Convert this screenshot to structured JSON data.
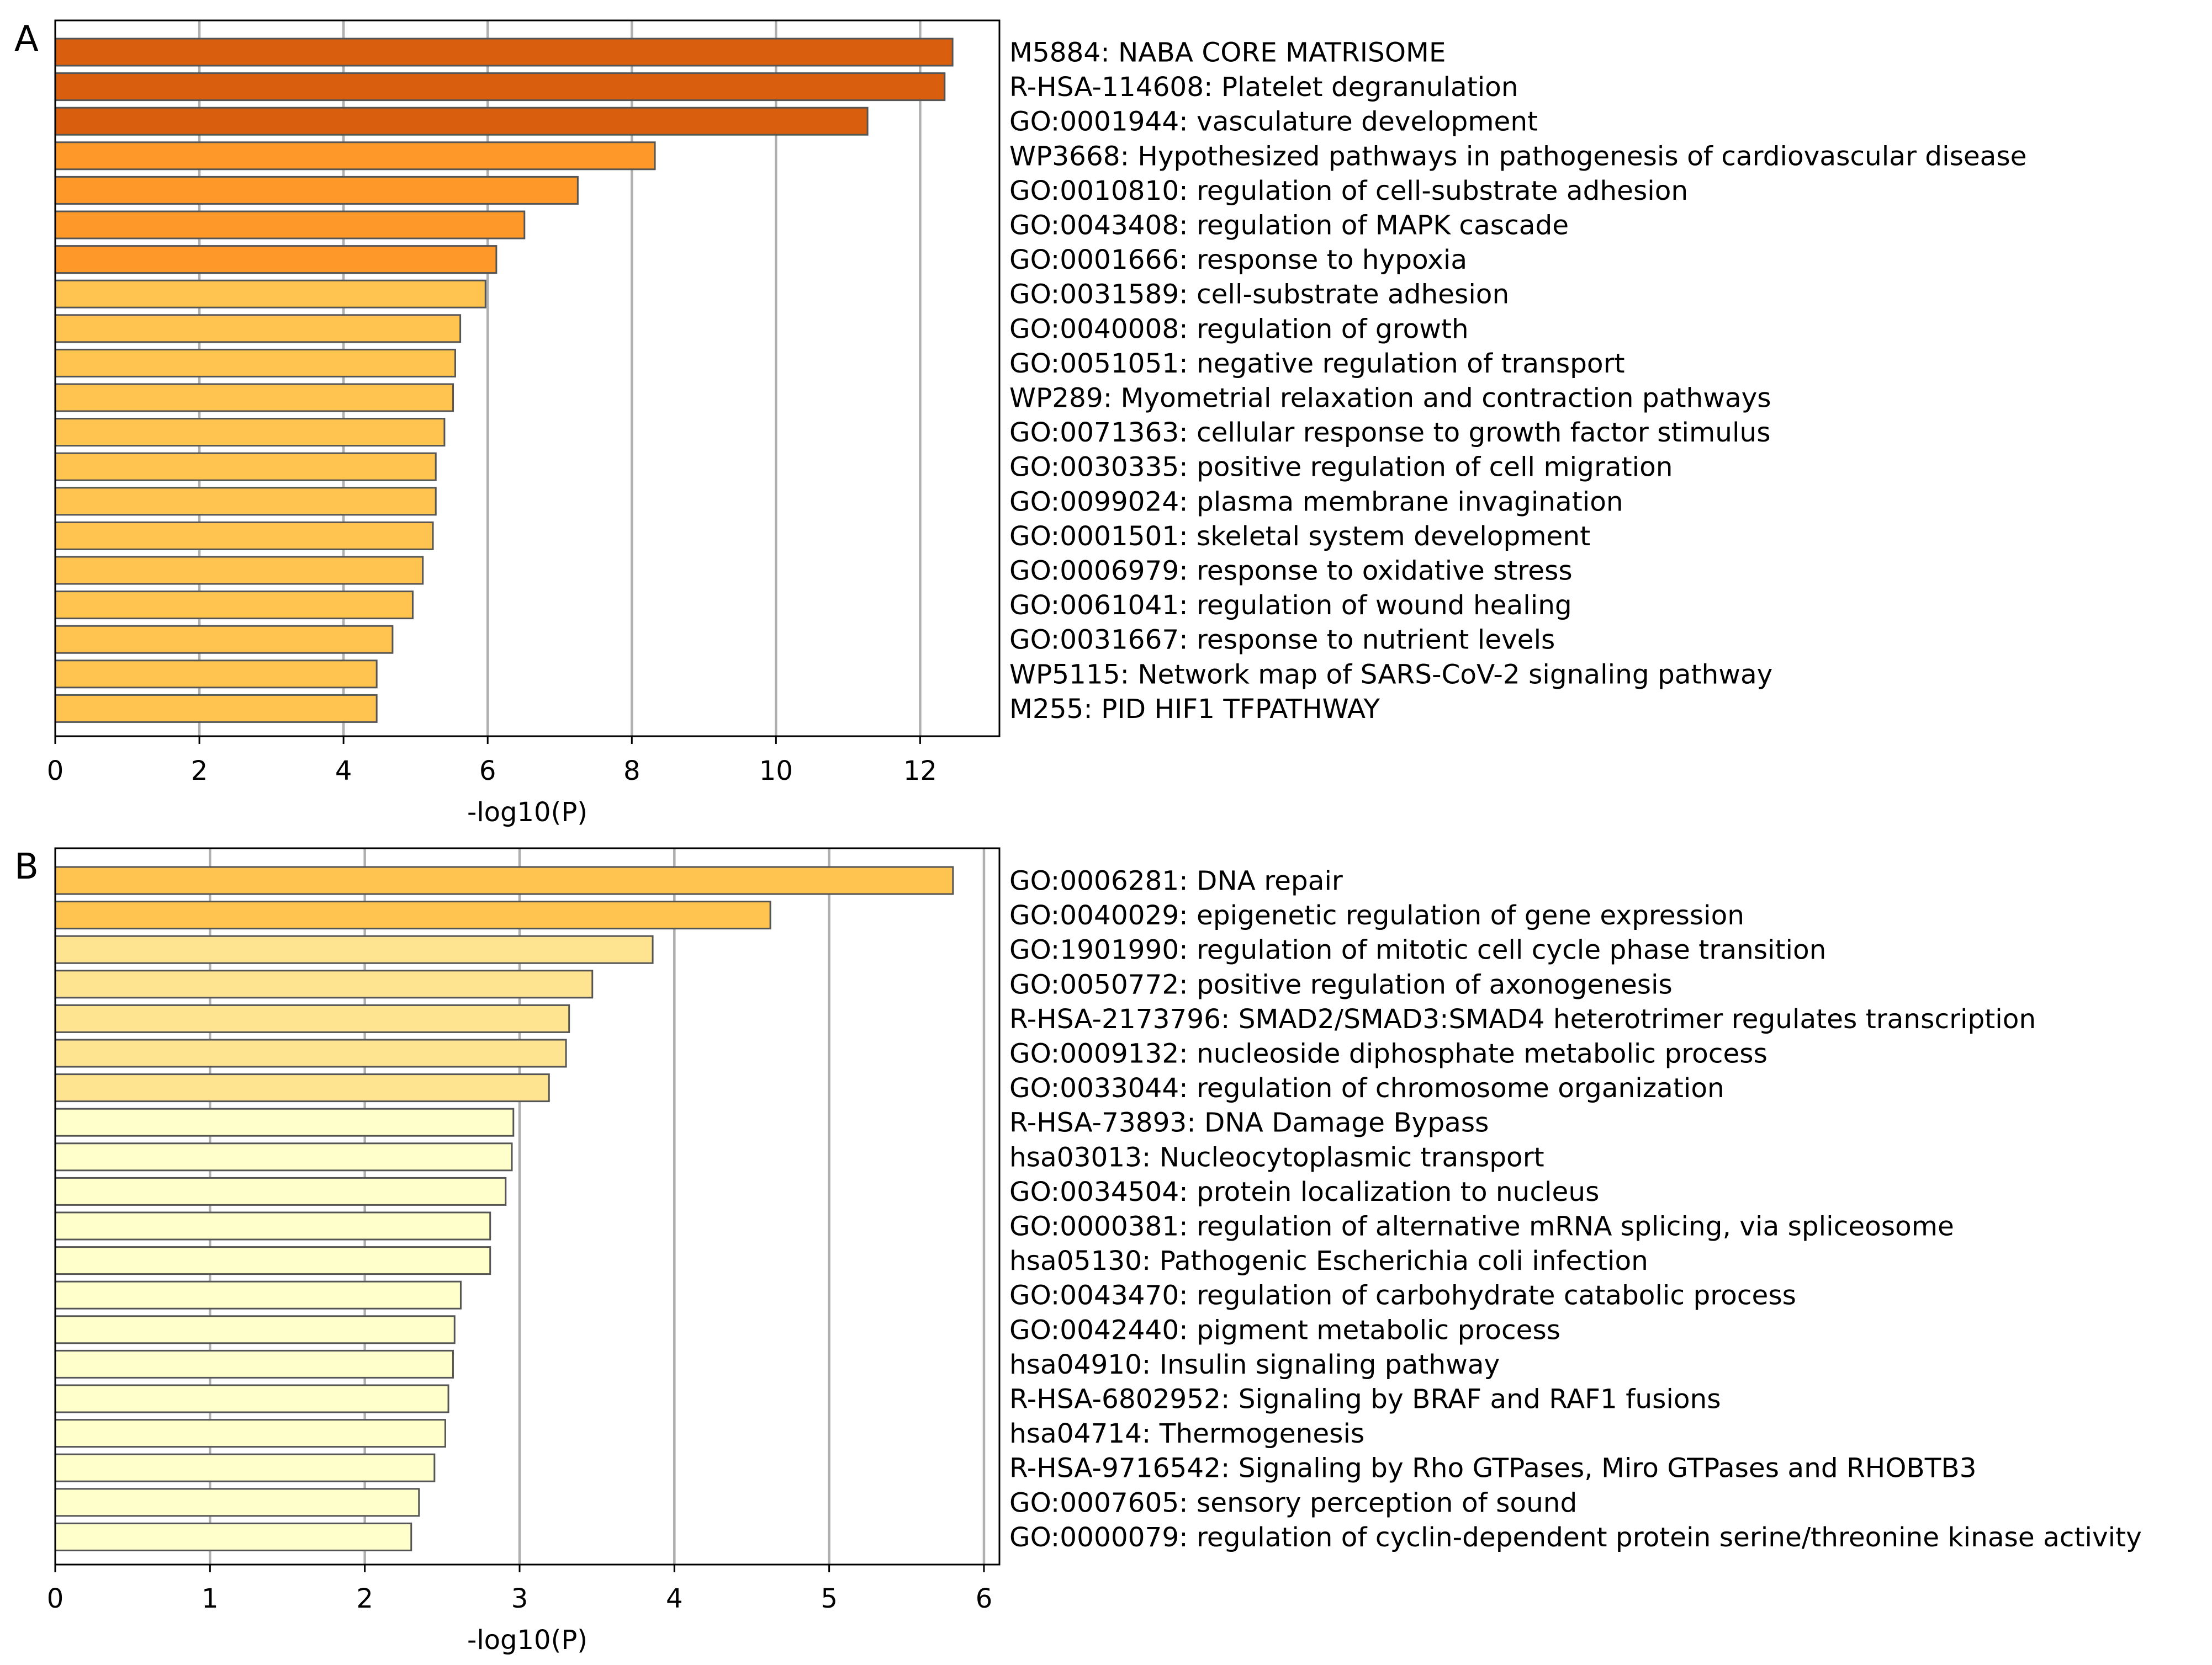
{
  "chart_data": [
    {
      "type": "bar",
      "orientation": "horizontal",
      "panel_label": "A",
      "xlabel": "-log10(P)",
      "xlim": [
        0,
        13.1
      ],
      "xticks": [
        0,
        2,
        4,
        6,
        8,
        10,
        12
      ],
      "grid": "vertical lines",
      "categories": [
        "M5884: NABA CORE MATRISOME",
        "R-HSA-114608: Platelet degranulation",
        "GO:0001944: vasculature development",
        "WP3668: Hypothesized pathways in pathogenesis of cardiovascular disease",
        "GO:0010810: regulation of cell-substrate adhesion",
        "GO:0043408: regulation of MAPK cascade",
        "GO:0001666: response to hypoxia",
        "GO:0031589: cell-substrate adhesion",
        "GO:0040008: regulation of growth",
        "GO:0051051: negative regulation of transport",
        "WP289: Myometrial relaxation and contraction pathways",
        "GO:0071363: cellular response to growth factor stimulus",
        "GO:0030335: positive regulation of cell migration",
        "GO:0099024: plasma membrane invagination",
        "GO:0001501: skeletal system development",
        "GO:0006979: response to oxidative stress",
        "GO:0061041: regulation of wound healing",
        "GO:0031667: response to nutrient levels",
        "WP5115: Network map of SARS-CoV-2 signaling pathway",
        "M255: PID HIF1 TFPATHWAY"
      ],
      "values": [
        12.45,
        12.34,
        11.27,
        8.32,
        7.25,
        6.51,
        6.12,
        5.97,
        5.62,
        5.55,
        5.52,
        5.4,
        5.28,
        5.28,
        5.24,
        5.1,
        4.96,
        4.68,
        4.46,
        4.46
      ],
      "colors": [
        "#d95f0e",
        "#d95f0e",
        "#d95f0e",
        "#fe9929",
        "#fe9929",
        "#fe9929",
        "#fe9929",
        "#fec44f",
        "#fec44f",
        "#fec44f",
        "#fec44f",
        "#fec44f",
        "#fec44f",
        "#fec44f",
        "#fec44f",
        "#fec44f",
        "#fec44f",
        "#fec44f",
        "#fec44f",
        "#fec44f"
      ]
    },
    {
      "type": "bar",
      "orientation": "horizontal",
      "panel_label": "B",
      "xlabel": "-log10(P)",
      "xlim": [
        0,
        6.1
      ],
      "xticks": [
        0,
        1,
        2,
        3,
        4,
        5,
        6
      ],
      "grid": "vertical lines",
      "categories": [
        "GO:0006281: DNA repair",
        "GO:0040029: epigenetic regulation of gene expression",
        "GO:1901990: regulation of mitotic cell cycle phase transition",
        "GO:0050772: positive regulation of axonogenesis",
        "R-HSA-2173796: SMAD2/SMAD3:SMAD4 heterotrimer regulates transcription",
        "GO:0009132: nucleoside diphosphate metabolic process",
        "GO:0033044: regulation of chromosome organization",
        "R-HSA-73893: DNA Damage Bypass",
        "hsa03013: Nucleocytoplasmic transport",
        "GO:0034504: protein localization to nucleus",
        "GO:0000381: regulation of alternative mRNA splicing, via spliceosome",
        "hsa05130: Pathogenic Escherichia coli infection",
        "GO:0043470: regulation of carbohydrate catabolic process",
        "GO:0042440: pigment metabolic process",
        "hsa04910: Insulin signaling pathway",
        "R-HSA-6802952: Signaling by BRAF and RAF1 fusions",
        "hsa04714: Thermogenesis",
        "R-HSA-9716542: Signaling by Rho GTPases, Miro GTPases and RHOBTB3",
        "GO:0007605: sensory perception of sound",
        "GO:0000079: regulation of cyclin-dependent protein serine/threonine kinase activity"
      ],
      "values": [
        5.8,
        4.62,
        3.86,
        3.47,
        3.32,
        3.3,
        3.19,
        2.96,
        2.95,
        2.91,
        2.81,
        2.81,
        2.62,
        2.58,
        2.57,
        2.54,
        2.52,
        2.45,
        2.35,
        2.3
      ],
      "colors": [
        "#fec44f",
        "#fec44f",
        "#fee391",
        "#fee391",
        "#fee391",
        "#fee391",
        "#fee391",
        "#ffffcc",
        "#ffffcc",
        "#ffffcc",
        "#ffffcc",
        "#ffffcc",
        "#ffffcc",
        "#ffffcc",
        "#ffffcc",
        "#ffffcc",
        "#ffffcc",
        "#ffffcc",
        "#ffffcc",
        "#ffffcc"
      ]
    }
  ]
}
